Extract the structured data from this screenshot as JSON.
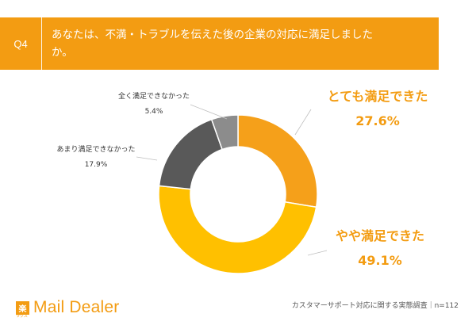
{
  "header": {
    "qnum": "Q4",
    "title": "あなたは、不満・トラブルを伝えた後の企業の対応に満足しましたか。"
  },
  "chart_data": {
    "type": "donut",
    "slices": [
      {
        "label": "とても満足できた",
        "value": 27.6,
        "value_text": "27.6%",
        "color": "#F5A01A"
      },
      {
        "label": "やや満足できた",
        "value": 49.1,
        "value_text": "49.1%",
        "color": "#FFC000"
      },
      {
        "label": "あまり満足できなかった",
        "value": 17.9,
        "value_text": "17.9%",
        "color": "#595959"
      },
      {
        "label": "全く満足できなかった",
        "value": 5.4,
        "value_text": "5.4%",
        "color": "#8C8C8C"
      }
    ]
  },
  "logo": {
    "badge": "楽",
    "sub": "ラクス",
    "name": "Mail Dealer"
  },
  "footer": {
    "note": "カスタマーサポート対応に関する実態調査｜n=112"
  }
}
